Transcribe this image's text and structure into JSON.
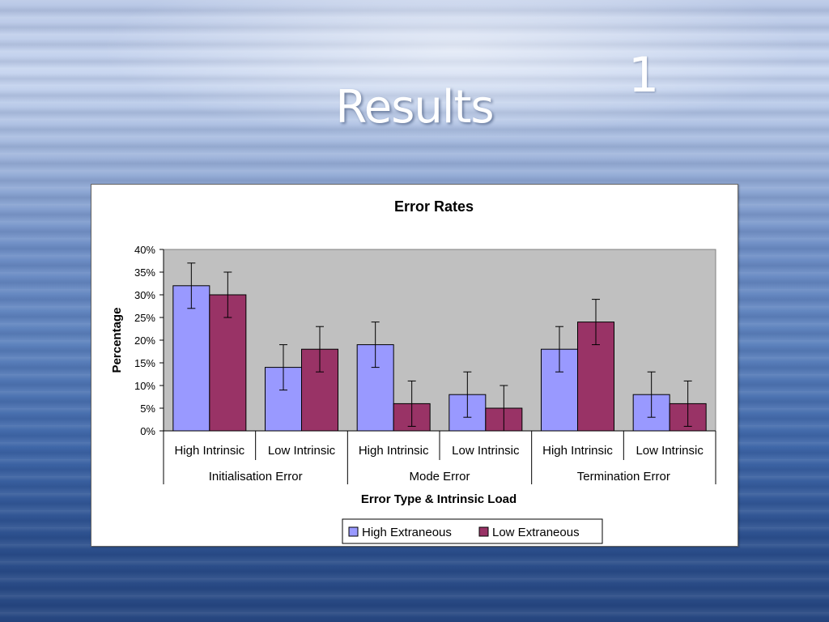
{
  "slide": {
    "title": "Results",
    "number": "1"
  },
  "chart_data": {
    "type": "bar",
    "title": "Error Rates",
    "xlabel": "Error Type & Intrinsic Load",
    "ylabel": "Percentage",
    "ylim": [
      0,
      40
    ],
    "ytick_labels": [
      "0%",
      "5%",
      "10%",
      "15%",
      "20%",
      "25%",
      "30%",
      "35%",
      "40%"
    ],
    "groups": [
      "Initialisation Error",
      "Mode Error",
      "Termination Error"
    ],
    "categories": [
      "High Intrinsic",
      "Low Intrinsic",
      "High Intrinsic",
      "Low Intrinsic",
      "High Intrinsic",
      "Low Intrinsic"
    ],
    "series": [
      {
        "name": "High Extraneous",
        "color": "#9999ff",
        "values": [
          32,
          14,
          19,
          8,
          18,
          8
        ],
        "error_low": [
          27,
          9,
          14,
          3,
          13,
          3
        ],
        "error_high": [
          37,
          19,
          24,
          13,
          23,
          13
        ]
      },
      {
        "name": "Low Extraneous",
        "color": "#993366",
        "values": [
          30,
          18,
          6,
          5,
          24,
          6
        ],
        "error_low": [
          25,
          13,
          1,
          0,
          19,
          1
        ],
        "error_high": [
          35,
          23,
          11,
          10,
          29,
          11
        ]
      }
    ],
    "plot_background": "#c0c0c0",
    "grid": false,
    "legend_position": "bottom"
  }
}
